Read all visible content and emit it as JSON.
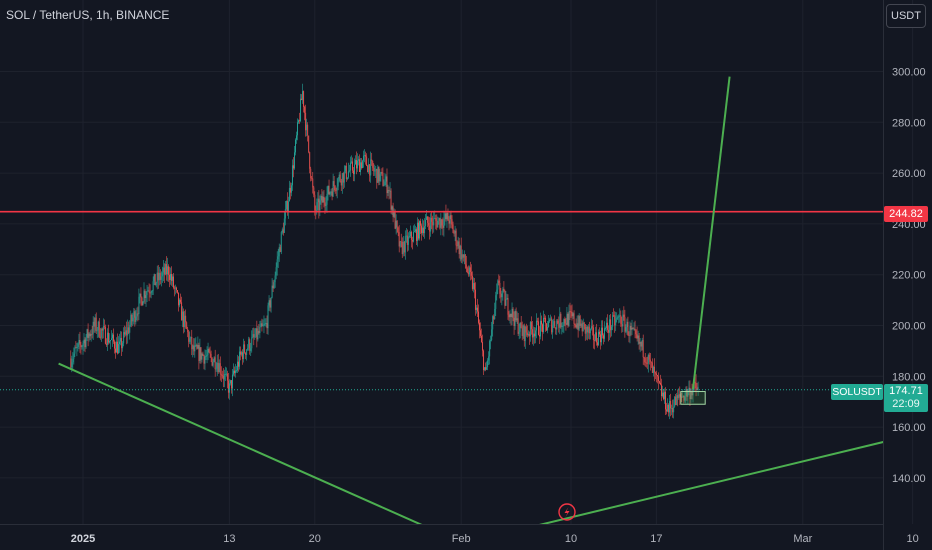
{
  "header": {
    "pair_title": "SOL / TetherUS, 1h, BINANCE",
    "currency_label": "USDT"
  },
  "colors": {
    "background": "#131722",
    "grid": "#1e222d",
    "up_candle": "#26a69a",
    "down_candle": "#ef5350",
    "trend_lines": "#4caf50",
    "resistance_line": "#f23645",
    "current_price": "#22ab94"
  },
  "chart_data": {
    "type": "candlestick",
    "title": "SOL / TetherUS, 1h, BINANCE",
    "y_axis": {
      "ticks": [
        "300.00",
        "280.00",
        "260.00",
        "240.00",
        "220.00",
        "200.00",
        "180.00",
        "160.00",
        "140.00"
      ],
      "tick_values": [
        300,
        280,
        260,
        240,
        220,
        200,
        180,
        160,
        140
      ],
      "ylim": [
        120,
        320
      ]
    },
    "x_axis": {
      "ticks": [
        "2025",
        "13",
        "20",
        "Feb",
        "10",
        "17",
        "Mar",
        "10"
      ]
    },
    "price_path": [
      {
        "date": "2024-12-31",
        "price": 187
      },
      {
        "date": "2025-01-02",
        "price": 200
      },
      {
        "date": "2025-01-04",
        "price": 191
      },
      {
        "date": "2025-01-06",
        "price": 213
      },
      {
        "date": "2025-01-08",
        "price": 222
      },
      {
        "date": "2025-01-10",
        "price": 190
      },
      {
        "date": "2025-01-12",
        "price": 186
      },
      {
        "date": "2025-01-13",
        "price": 175
      },
      {
        "date": "2025-01-14",
        "price": 189
      },
      {
        "date": "2025-01-16",
        "price": 200
      },
      {
        "date": "2025-01-18",
        "price": 255
      },
      {
        "date": "2025-01-19",
        "price": 292
      },
      {
        "date": "2025-01-20",
        "price": 245
      },
      {
        "date": "2025-01-22",
        "price": 258
      },
      {
        "date": "2025-01-24",
        "price": 265
      },
      {
        "date": "2025-01-26",
        "price": 255
      },
      {
        "date": "2025-01-27",
        "price": 230
      },
      {
        "date": "2025-01-29",
        "price": 240
      },
      {
        "date": "2025-01-31",
        "price": 242
      },
      {
        "date": "2025-02-02",
        "price": 215
      },
      {
        "date": "2025-02-03",
        "price": 180
      },
      {
        "date": "2025-02-04",
        "price": 215
      },
      {
        "date": "2025-02-06",
        "price": 197
      },
      {
        "date": "2025-02-08",
        "price": 200
      },
      {
        "date": "2025-02-10",
        "price": 203
      },
      {
        "date": "2025-02-12",
        "price": 195
      },
      {
        "date": "2025-02-14",
        "price": 203
      },
      {
        "date": "2025-02-16",
        "price": 190
      },
      {
        "date": "2025-02-17",
        "price": 178
      },
      {
        "date": "2025-02-18",
        "price": 167
      },
      {
        "date": "2025-02-19",
        "price": 172
      },
      {
        "date": "2025-02-20",
        "price": 175
      }
    ],
    "horizontal_line": {
      "price": 244.82,
      "label": "244.82"
    },
    "current_price": {
      "symbol": "SOLUSDT",
      "price": 174.71,
      "label": "174.71",
      "countdown": "22:09"
    },
    "trend_lines": [
      {
        "from": {
          "date": "2024-12-30",
          "price": 185
        },
        "to": {
          "date": "2025-01-29",
          "price": 121
        }
      },
      {
        "from": {
          "date": "2025-02-07",
          "price": 121
        },
        "to": {
          "date": "2025-03-23",
          "price": 172
        }
      },
      {
        "from": {
          "date": "2025-02-20",
          "price": 175
        },
        "to": {
          "date": "2025-02-23",
          "price": 298
        }
      }
    ],
    "rectangle": {
      "from": {
        "date": "2025-02-19",
        "price": 174
      },
      "to": {
        "date": "2025-02-21",
        "price": 169
      }
    },
    "legend": "none",
    "grid": true
  }
}
